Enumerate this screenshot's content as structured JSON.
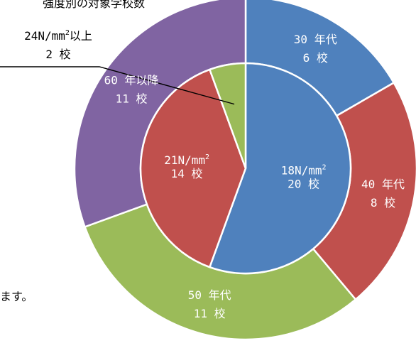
{
  "page_text": {
    "top": "強度別の対象学校数",
    "left": "ます。"
  },
  "chart_data": {
    "type": "pie",
    "subtype": "double-donut",
    "title": "",
    "outer_ring": {
      "slices": [
        {
          "label": "30 年代",
          "value_label": "6 校",
          "value": 6,
          "color": "#4f81bd"
        },
        {
          "label": "40 年代",
          "value_label": "8 校",
          "value": 8,
          "color": "#c0504d"
        },
        {
          "label": "50 年代",
          "value_label": "11 校",
          "value": 11,
          "color": "#9bbb59"
        },
        {
          "label": "60 年以降",
          "value_label": "11 校",
          "value": 11,
          "color": "#8064a2"
        }
      ]
    },
    "inner_ring": {
      "slices": [
        {
          "label": "18N/mm",
          "sup": "2",
          "value_label": "20 校",
          "value": 20,
          "color": "#4f81bd"
        },
        {
          "label": "21N/mm",
          "sup": "2",
          "value_label": "14 校",
          "value": 14,
          "color": "#c0504d"
        },
        {
          "label": "24N/mm",
          "sup": "2",
          "label_suffix": "以上",
          "value_label": "2 校",
          "value": 2,
          "color": "#9bbb59",
          "callout": true
        }
      ]
    }
  }
}
